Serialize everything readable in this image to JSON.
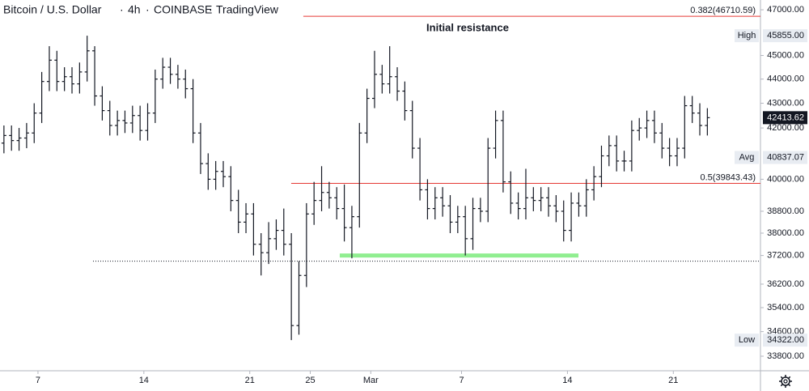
{
  "chart_data": {
    "type": "ohlc",
    "title": [
      "Bitcoin / U.S. Dollar",
      "4h",
      "COINBASE",
      "TradingView"
    ],
    "annotation": "Initial resistance",
    "log_scale": true,
    "color": "#131722",
    "xlim": [
      4.49,
      54.76
    ],
    "ylim": [
      33335,
      47440
    ],
    "xticks": [
      7,
      14,
      21,
      25,
      {
        "value": 29,
        "label": "Mar"
      },
      {
        "value": 35,
        "label": "7"
      },
      {
        "value": 42,
        "label": "14"
      },
      {
        "value": 49,
        "label": "21"
      }
    ],
    "yticks": [
      {
        "value": 47000,
        "label": "47000.00"
      },
      {
        "value": 45000,
        "label": "45000.00"
      },
      {
        "value": 44000,
        "label": "44000.00"
      },
      {
        "value": 43000,
        "label": "43000.00"
      },
      {
        "value": 42000,
        "label": "42000.00"
      },
      {
        "value": 40000,
        "label": "40000.00"
      },
      {
        "value": 38800,
        "label": "38800.00"
      },
      {
        "value": 38000,
        "label": "38000.00"
      },
      {
        "value": 37200,
        "label": "37200.00"
      },
      {
        "value": 36200,
        "label": "36200.00"
      },
      {
        "value": 35400,
        "label": "35400.00"
      },
      {
        "value": 34600,
        "label": "34600.00"
      },
      {
        "value": 33800,
        "label": "33800.00"
      }
    ],
    "fib_levels": [
      {
        "value": 46710.59,
        "label": "0.382(46710.59)",
        "from": 24.54,
        "color": "#e53935"
      },
      {
        "value": 39843.43,
        "label": "0.5(39843.43)",
        "from": 23.74,
        "color": "#e53935"
      }
    ],
    "levels": [
      {
        "value": 37000,
        "from": 10.64,
        "style": "dotted",
        "color": "#131722"
      },
      {
        "value": 37200,
        "from": 26.95,
        "to": 42.73,
        "style": "highlight",
        "color": "#90ee90"
      }
    ],
    "price_labels": [
      {
        "name": "High",
        "value": 45855,
        "label": "45855.00"
      },
      {
        "name": "Avg",
        "value": 40837.07,
        "label": "40837.07"
      },
      {
        "name": "Low",
        "value": 34322,
        "label": "34322.00"
      }
    ],
    "last_price": {
      "value": 42413.62,
      "label": "42413.62"
    },
    "x": [
      4.75,
      5.25,
      5.75,
      6.25,
      6.75,
      7.25,
      7.75,
      8.25,
      8.75,
      9.25,
      9.75,
      10.25,
      10.75,
      11.25,
      11.75,
      12.25,
      12.75,
      13.25,
      13.75,
      14.25,
      14.75,
      15.25,
      15.75,
      16.25,
      16.75,
      17.25,
      17.75,
      18.25,
      18.75,
      19.25,
      19.75,
      20.25,
      20.75,
      21.25,
      21.75,
      22.25,
      22.75,
      23.25,
      23.75,
      24.25,
      24.75,
      25.25,
      25.75,
      26.25,
      26.75,
      27.25,
      27.75,
      28.25,
      28.75,
      29.25,
      29.75,
      30.25,
      30.75,
      31.25,
      31.75,
      32.25,
      32.75,
      33.25,
      33.75,
      34.25,
      34.75,
      35.25,
      35.75,
      36.25,
      36.75,
      37.25,
      37.75,
      38.25,
      38.75,
      39.25,
      39.75,
      40.25,
      40.75,
      41.25,
      41.75,
      42.25,
      42.75,
      43.25,
      43.75,
      44.25,
      44.75,
      45.25,
      45.75,
      46.25,
      46.75,
      47.25,
      47.75,
      48.25,
      48.75,
      49.25,
      49.75,
      50.25,
      50.75,
      51.25
    ],
    "open": [
      41400,
      41700,
      41500,
      41600,
      41800,
      42600,
      43900,
      44800,
      43900,
      44100,
      43800,
      44300,
      45200,
      43300,
      42700,
      42100,
      42300,
      42200,
      42500,
      41900,
      42600,
      44000,
      44500,
      44200,
      44000,
      43600,
      41800,
      40600,
      40000,
      40300,
      40100,
      39200,
      38400,
      38700,
      37600,
      37300,
      37800,
      38100,
      37600,
      34800,
      36500,
      38700,
      39200,
      39500,
      39300,
      38900,
      38200,
      38600,
      41800,
      43200,
      44200,
      43800,
      44100,
      43500,
      42700,
      41200,
      39600,
      38900,
      39300,
      39000,
      38400,
      38600,
      37800,
      38900,
      38800,
      41200,
      42300,
      39900,
      39100,
      38900,
      39300,
      39200,
      39300,
      39000,
      38800,
      38100,
      39100,
      39000,
      39600,
      40100,
      40900,
      41300,
      40700,
      40700,
      41900,
      42000,
      42300,
      41800,
      41200,
      40900,
      41200,
      42900,
      42600,
      42100
    ],
    "high": [
      42100,
      42100,
      42000,
      42200,
      43000,
      44300,
      45400,
      45200,
      44500,
      44500,
      44700,
      45855,
      45400,
      43700,
      43100,
      42700,
      42700,
      42900,
      42900,
      43000,
      44400,
      44900,
      44900,
      44600,
      44400,
      44000,
      42200,
      41000,
      40700,
      40700,
      40500,
      39600,
      39100,
      39100,
      38000,
      38400,
      38500,
      38900,
      38000,
      37000,
      39100,
      39900,
      40500,
      39900,
      39700,
      39800,
      39000,
      42200,
      43600,
      45200,
      44600,
      45400,
      44500,
      43900,
      43100,
      41600,
      40000,
      39700,
      39700,
      39400,
      39000,
      39000,
      39300,
      39300,
      41600,
      42700,
      42700,
      40300,
      39500,
      40400,
      39700,
      39700,
      39700,
      39400,
      39200,
      39500,
      39500,
      40000,
      40500,
      41300,
      41700,
      41700,
      41100,
      42300,
      42400,
      42700,
      42700,
      42200,
      41600,
      41600,
      43300,
      43300,
      43000,
      42800
    ],
    "low": [
      41000,
      41100,
      41100,
      41200,
      41400,
      42200,
      43500,
      43500,
      43500,
      43400,
      43400,
      43900,
      42900,
      42300,
      41700,
      41700,
      41800,
      41800,
      41500,
      41500,
      42200,
      43600,
      43800,
      43600,
      43200,
      41400,
      40200,
      39600,
      39600,
      39700,
      38800,
      38000,
      38000,
      37200,
      36500,
      36900,
      37400,
      37200,
      34322,
      34500,
      36100,
      38300,
      38800,
      38900,
      38500,
      37700,
      37100,
      38200,
      41400,
      42800,
      43400,
      43400,
      43100,
      42300,
      40800,
      39200,
      38500,
      38500,
      38600,
      38000,
      38000,
      37200,
      37400,
      38400,
      38400,
      40800,
      39500,
      38700,
      38500,
      38500,
      38800,
      38800,
      38600,
      38400,
      37700,
      37700,
      38600,
      38600,
      39200,
      39700,
      40500,
      40300,
      40300,
      40300,
      41500,
      41600,
      41400,
      40800,
      40500,
      40500,
      40800,
      42200,
      41700,
      41700
    ],
    "close": [
      41700,
      41500,
      41600,
      41800,
      42600,
      43900,
      44800,
      43900,
      44100,
      43800,
      44300,
      45200,
      43300,
      42700,
      42100,
      42300,
      42200,
      42500,
      41900,
      42600,
      44000,
      44500,
      44200,
      44000,
      43600,
      41800,
      40600,
      40000,
      40300,
      40100,
      39200,
      38400,
      38700,
      37600,
      37300,
      37800,
      38100,
      37600,
      34800,
      36500,
      38700,
      39200,
      39500,
      39300,
      38900,
      38200,
      38600,
      41800,
      43200,
      44200,
      43800,
      44100,
      43500,
      42700,
      41200,
      39600,
      38900,
      39300,
      39000,
      38400,
      38600,
      37800,
      38900,
      38800,
      41200,
      42300,
      39900,
      39100,
      38900,
      39300,
      39200,
      39300,
      39000,
      38800,
      38100,
      39100,
      39000,
      39600,
      40100,
      40900,
      41300,
      40700,
      40700,
      41900,
      42000,
      42300,
      41800,
      41200,
      40900,
      41200,
      42900,
      42600,
      42100,
      42413.62
    ]
  }
}
